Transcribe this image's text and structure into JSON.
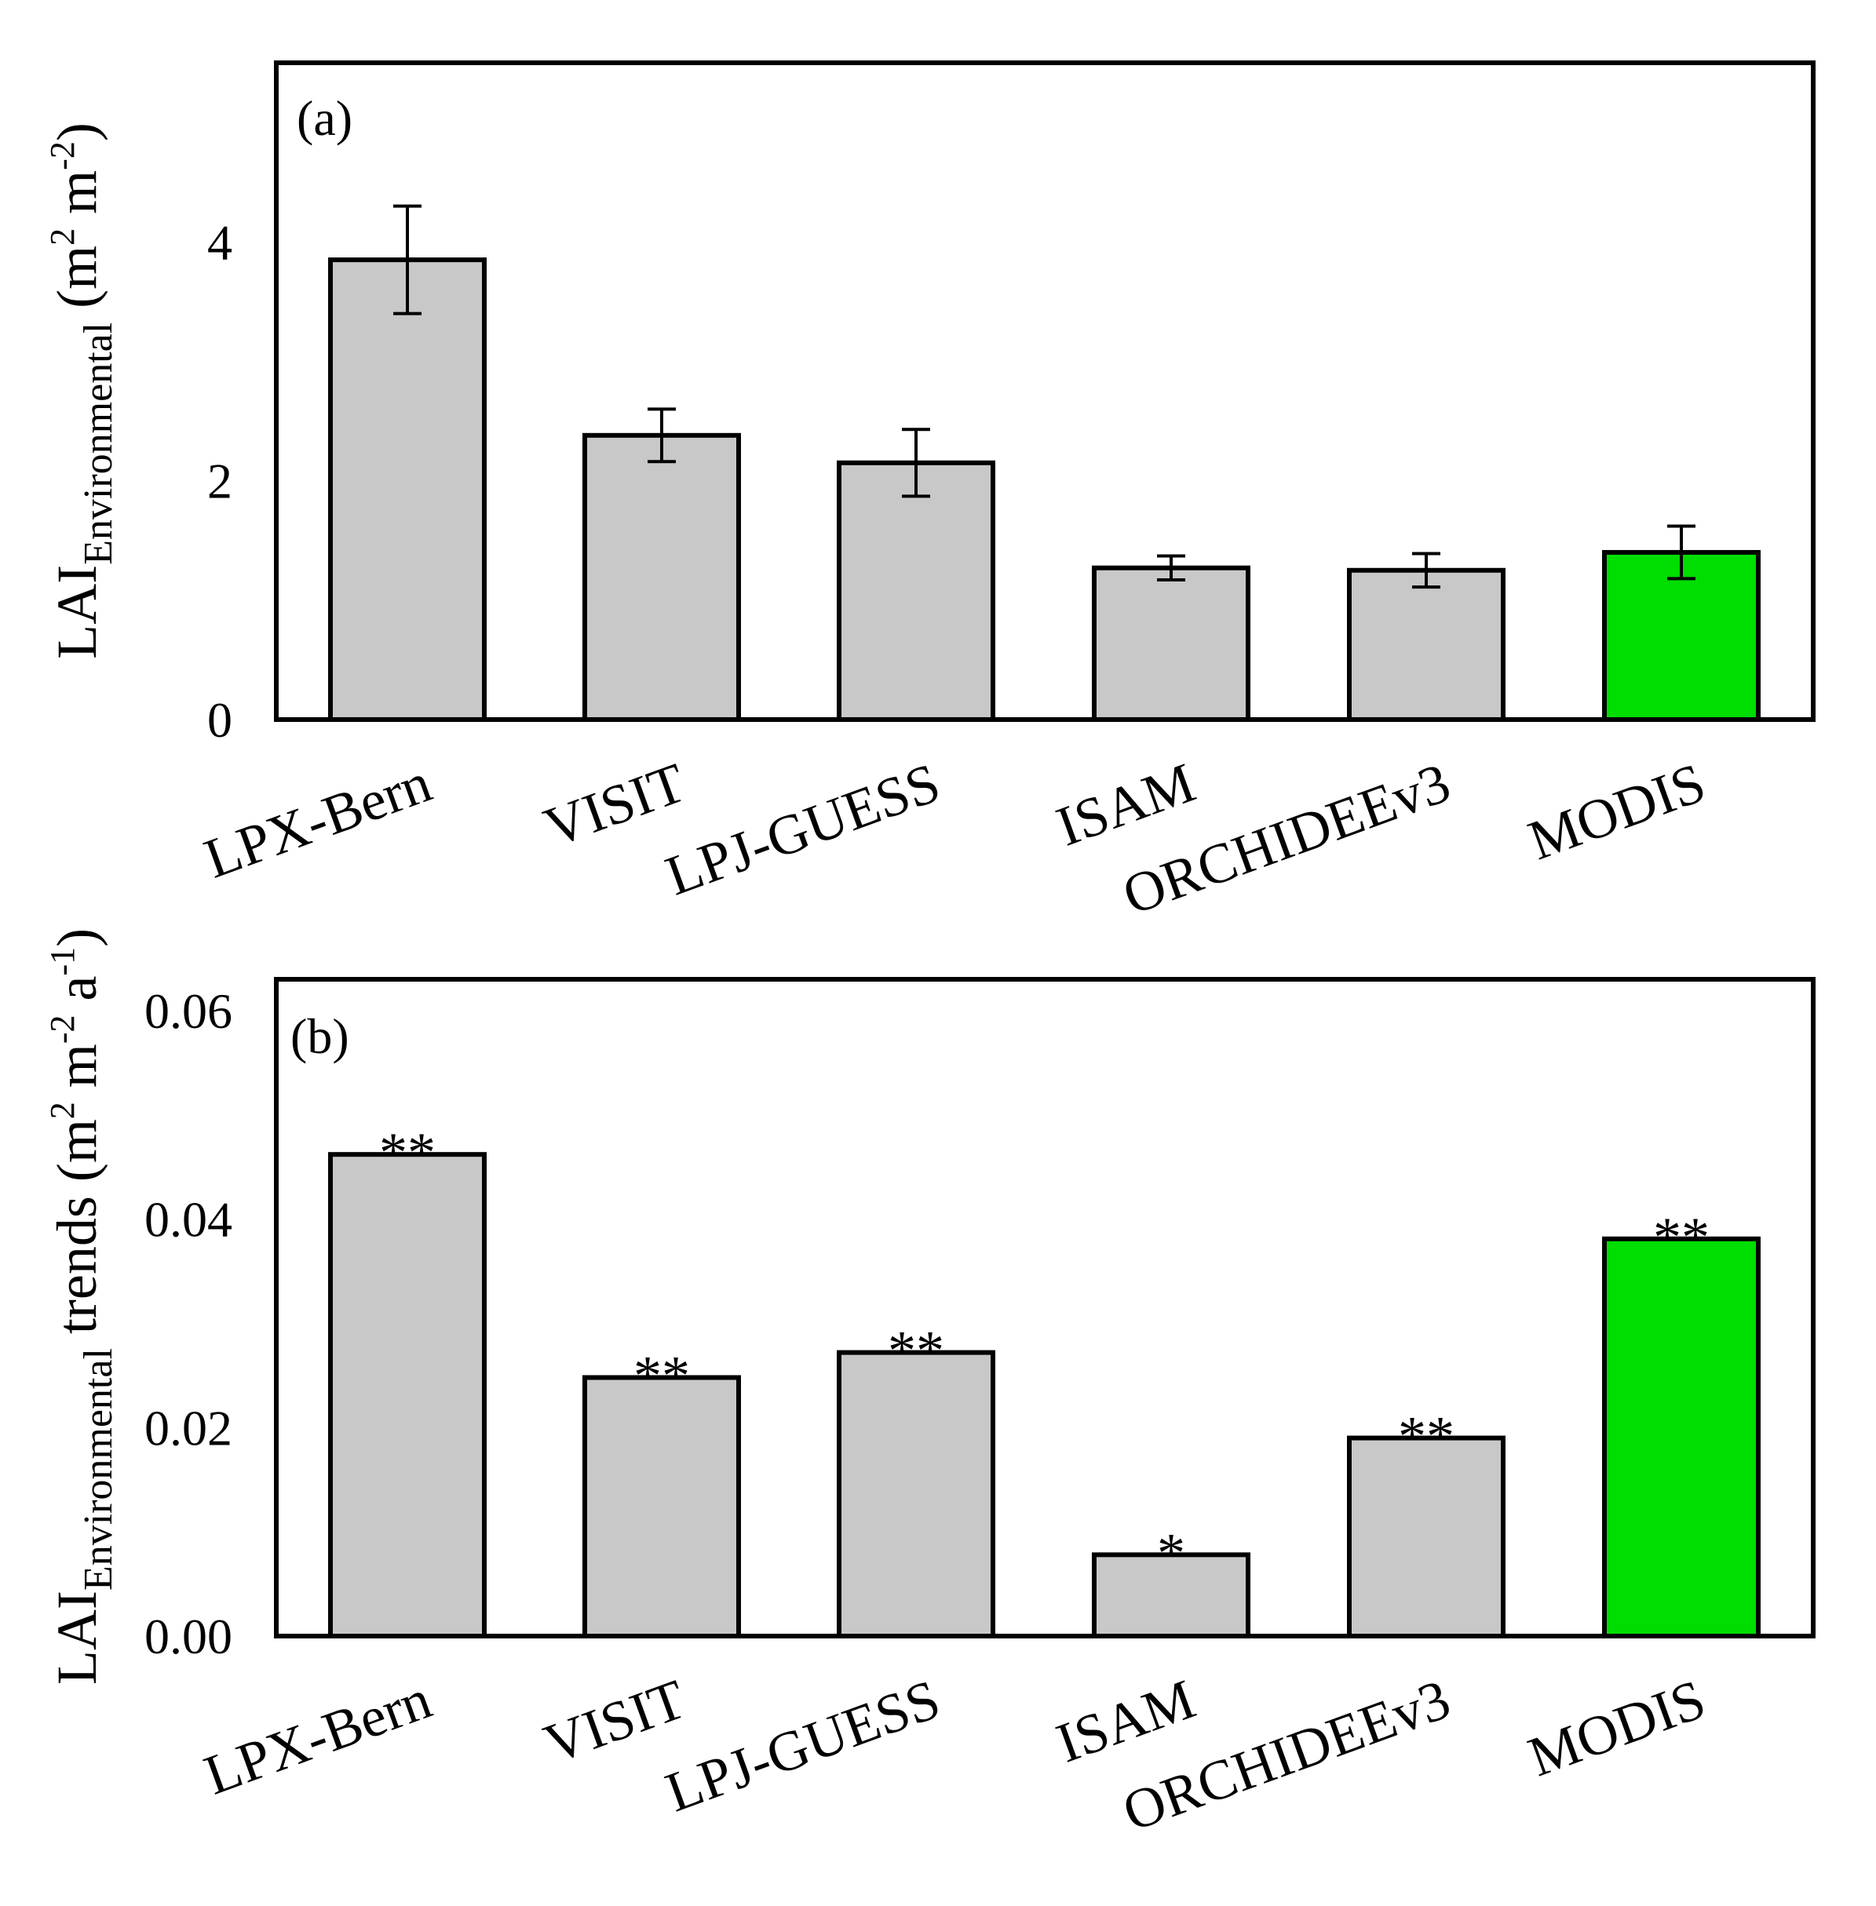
{
  "chart_data": [
    {
      "type": "bar",
      "panel_label": "(a)",
      "categories": [
        "LPX-Bern",
        "VISIT",
        "LPJ-GUESS",
        "ISAM",
        "ORCHIDEEv3",
        "MODIS"
      ],
      "values": [
        3.85,
        2.38,
        2.15,
        1.27,
        1.25,
        1.4
      ],
      "errors": [
        0.45,
        0.22,
        0.28,
        0.1,
        0.14,
        0.22
      ],
      "bar_colors": [
        "#c8c8c8",
        "#c8c8c8",
        "#c8c8c8",
        "#c8c8c8",
        "#c8c8c8",
        "#00dd00"
      ],
      "ylabel_main": "LAI",
      "ylabel_sub": "Environmental",
      "ylabel_unit": " (m",
      "ylabel_exp1": "2",
      "ylabel_mid": " m",
      "ylabel_exp2": "-2",
      "ylabel_close": ")",
      "ylim": [
        0,
        5.5
      ],
      "yticks": [
        0,
        2,
        4
      ],
      "ytick_labels": [
        "0",
        "2",
        "4"
      ],
      "xlabel": ""
    },
    {
      "type": "bar",
      "panel_label": "(b)",
      "categories": [
        "LPX-Bern",
        "VISIT",
        "LPJ-GUESS",
        "ISAM",
        "ORCHIDEEv3",
        "MODIS"
      ],
      "values": [
        0.0462,
        0.0248,
        0.0272,
        0.0078,
        0.019,
        0.0381
      ],
      "significance": [
        "**",
        "**",
        "**",
        "*",
        "**",
        "**"
      ],
      "bar_colors": [
        "#c8c8c8",
        "#c8c8c8",
        "#c8c8c8",
        "#c8c8c8",
        "#c8c8c8",
        "#00dd00"
      ],
      "ylabel_main": "LAI",
      "ylabel_sub": "Environmental",
      "ylabel_unit": " trends (m",
      "ylabel_exp1": "2",
      "ylabel_mid": " m",
      "ylabel_exp2": "-2",
      "ylabel_mid2": " a",
      "ylabel_exp3": "-1",
      "ylabel_close": ")",
      "ylim": [
        0,
        0.063
      ],
      "yticks": [
        0,
        0.02,
        0.04,
        0.06
      ],
      "ytick_labels": [
        "0.00",
        "0.02",
        "0.04",
        "0.06"
      ],
      "xlabel": ""
    }
  ]
}
